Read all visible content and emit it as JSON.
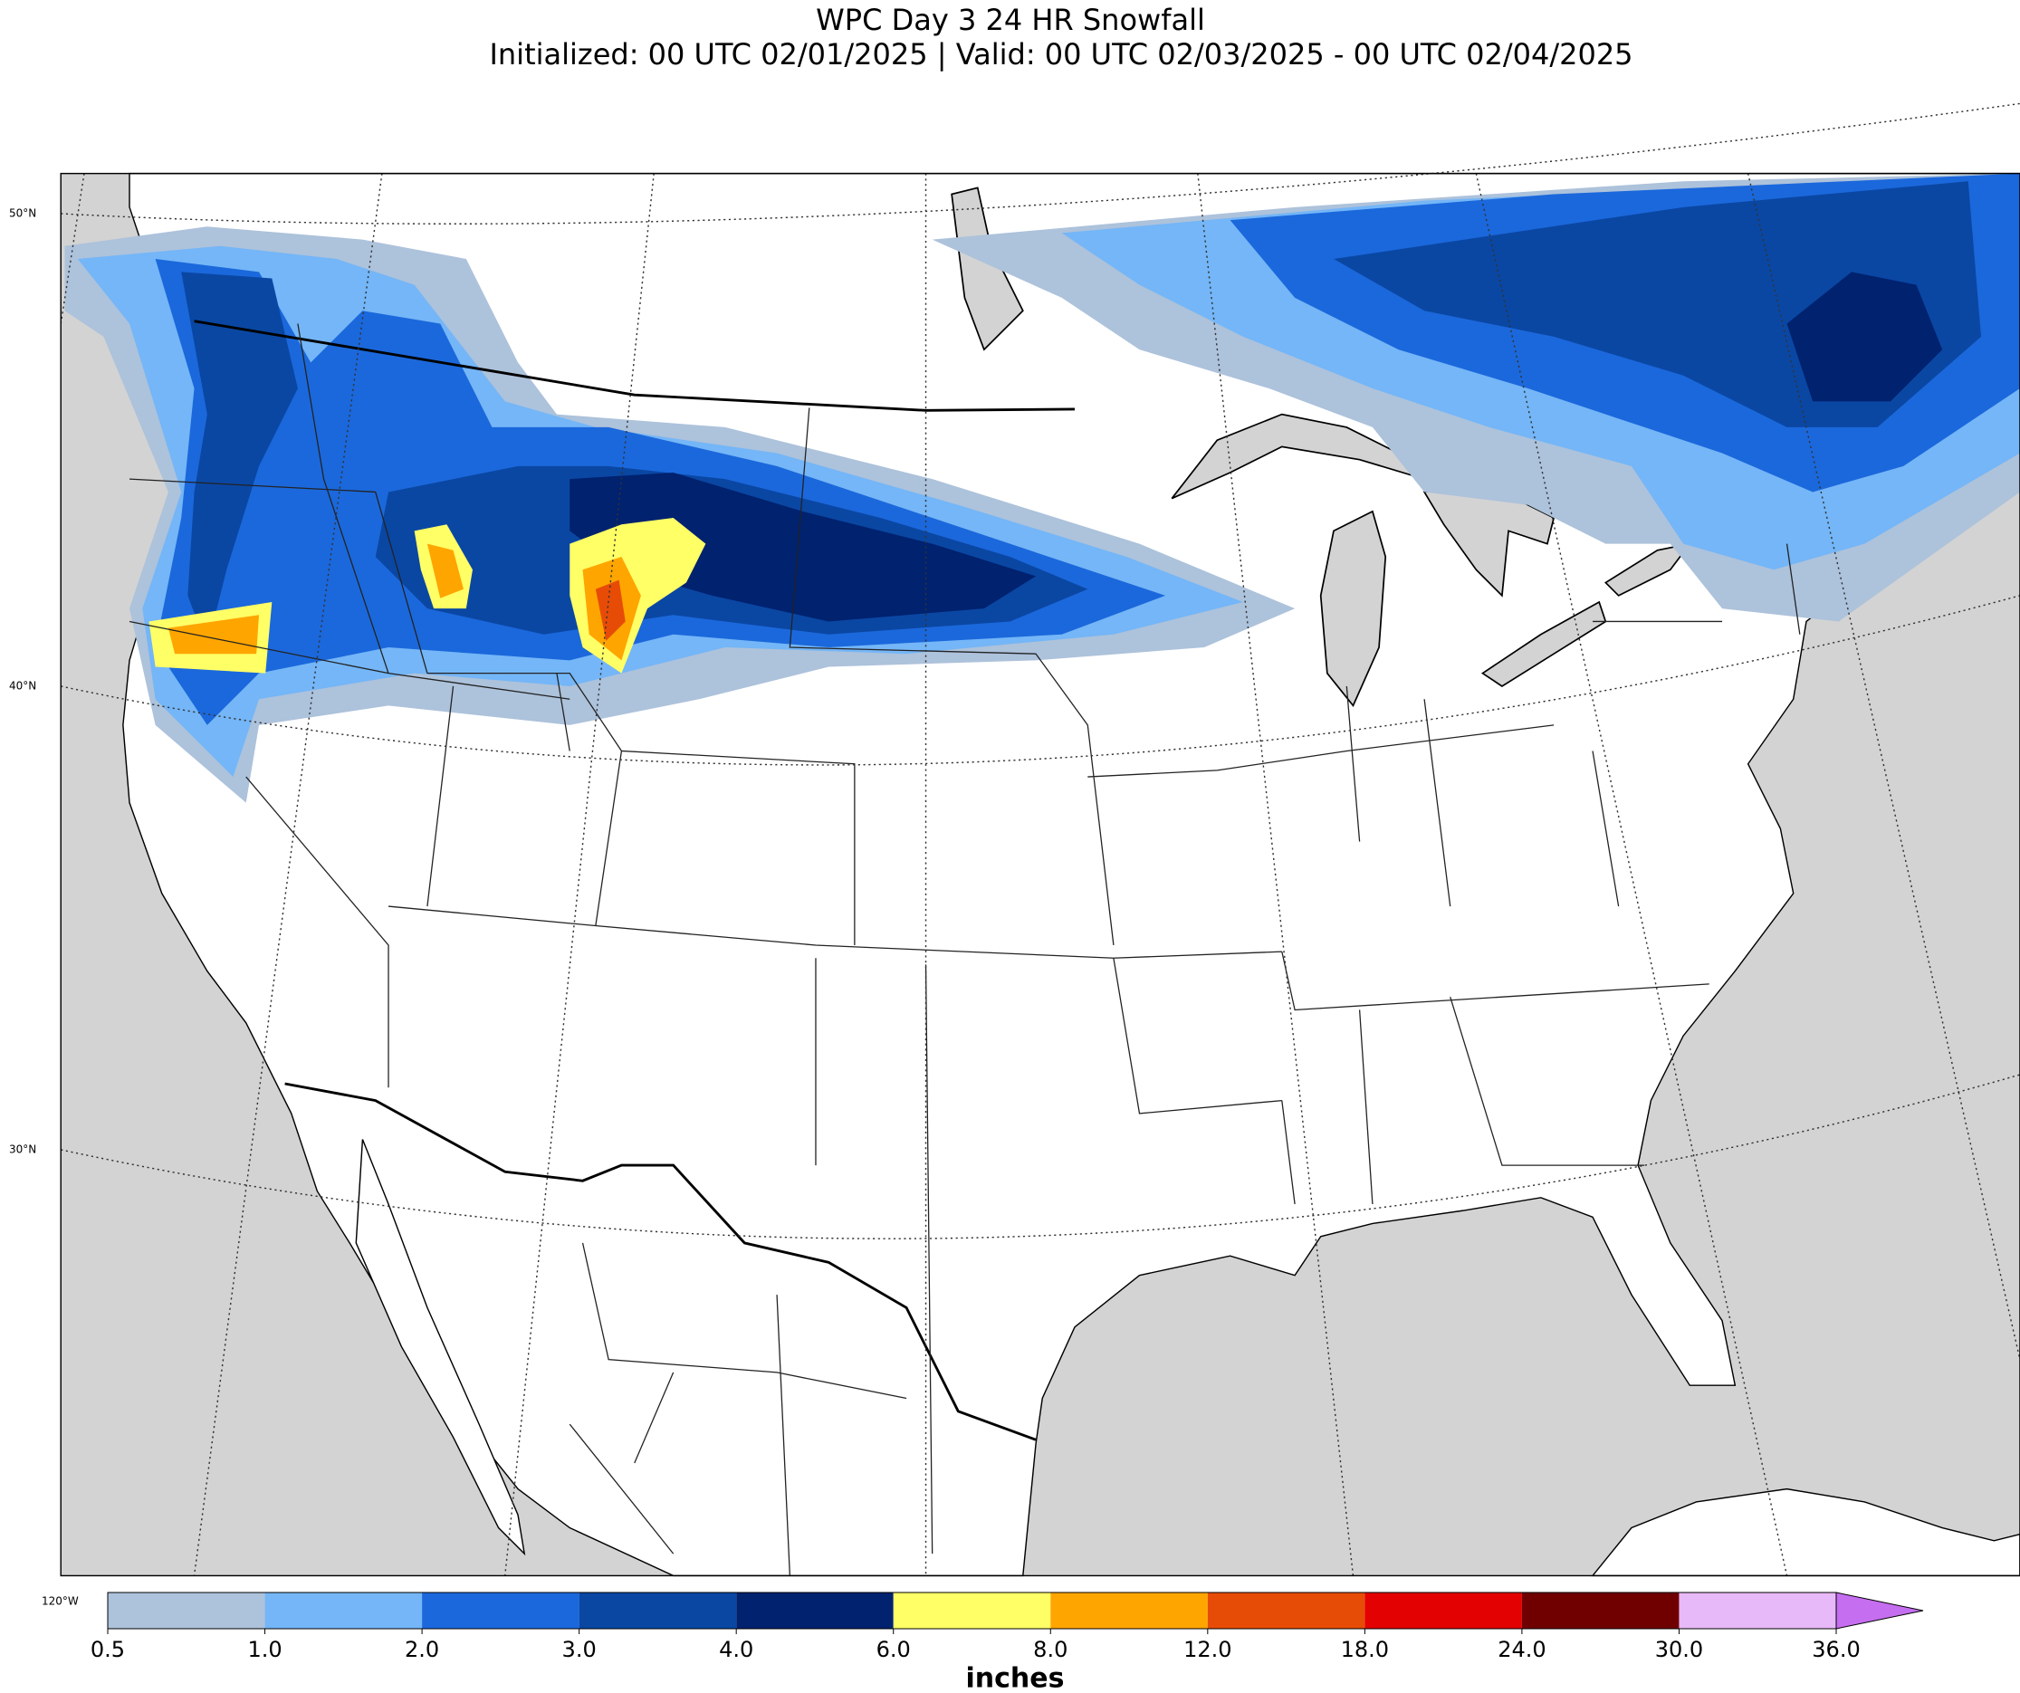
{
  "header": {
    "title": "WPC Day 3 24 HR Snowfall",
    "subtitle": "Initialized: 00 UTC 02/01/2025 | Valid: 00 UTC 02/03/2025 - 00 UTC 02/04/2025"
  },
  "map": {
    "lat_labels": [
      "50°N",
      "40°N",
      "30°N"
    ],
    "lon_labels": [
      "120°W"
    ]
  },
  "colorbar": {
    "levels": [
      {
        "value": 0.5,
        "label": "0.5"
      },
      {
        "value": 1,
        "label": "1.0"
      },
      {
        "value": 2,
        "label": "2.0"
      },
      {
        "value": 3,
        "label": "3.0"
      },
      {
        "value": 4,
        "label": "4.0"
      },
      {
        "value": 6,
        "label": "6.0"
      },
      {
        "value": 8,
        "label": "8.0"
      },
      {
        "value": 12,
        "label": "12.0"
      },
      {
        "value": 18,
        "label": "18.0"
      },
      {
        "value": 24,
        "label": "24.0"
      },
      {
        "value": 30,
        "label": "30.0"
      },
      {
        "value": 36,
        "label": "36.0"
      }
    ],
    "colors": [
      "#adc2db",
      "#74b6f7",
      "#1b68dc",
      "#0a47a3",
      "#00226f",
      "#ffff66",
      "#ffa500",
      "#e74c07",
      "#e40101",
      "#700000",
      "#e8b9f8",
      "#c56ef0"
    ],
    "label": "inches"
  }
}
